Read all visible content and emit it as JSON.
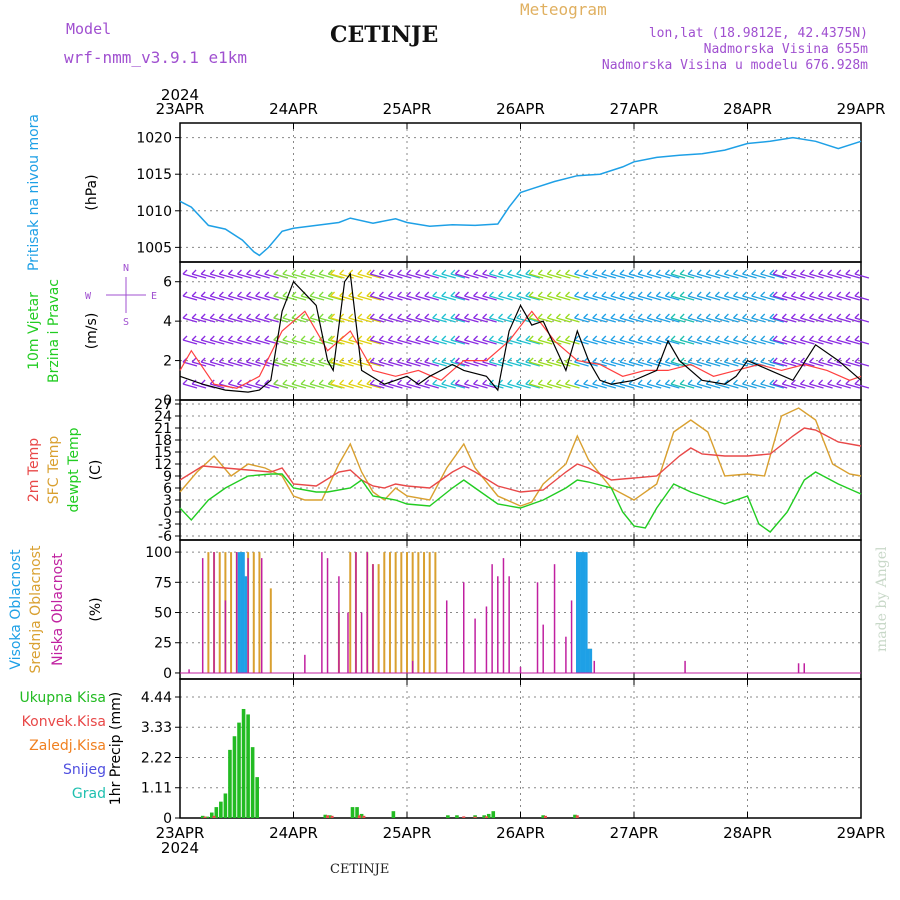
{
  "header": {
    "model_label": "Model",
    "model_name": "wrf-nmm_v3.9.1 e1km",
    "station": "CETINJE",
    "product": "Meteogram",
    "lonlat": "lon,lat (18.9812E, 42.4375N)",
    "altitude": "Nadmorska Visina 655m",
    "model_altitude": "Nadmorska Visina u modelu 676.928m",
    "footer_station": "CETINJE",
    "credit": "made by Angel"
  },
  "colors": {
    "pressure": "#1ea0e6",
    "temp2m": "#e84848",
    "sfc_temp": "#d9a030",
    "dewpt": "#22cc22",
    "high_cloud": "#1ea0e6",
    "mid_cloud": "#d9a030",
    "low_cloud": "#c020a0",
    "total_precip": "#22bb22",
    "conv_precip": "#e84848",
    "frozen_precip": "#f08020",
    "snow": "#5050e0",
    "grail": "#20c0b0",
    "wind_speed": "#000000",
    "wind_gust": "#ff4040"
  },
  "chart_data": {
    "type": "line",
    "x_axis": {
      "year": "2024",
      "ticks": [
        "23APR",
        "24APR",
        "25APR",
        "26APR",
        "27APR",
        "28APR",
        "29APR"
      ]
    },
    "panels": [
      {
        "name": "pressure",
        "ylabel": "Pritisak na nivou mora",
        "unit": "(hPa)",
        "ylim": [
          1003,
          1022
        ],
        "yticks": [
          1005,
          1010,
          1015,
          1020
        ],
        "series": [
          {
            "name": "pressure",
            "x": [
              0,
              0.1,
              0.25,
              0.4,
              0.55,
              0.65,
              0.7,
              0.78,
              0.9,
              1.0,
              1.2,
              1.4,
              1.5,
              1.7,
              1.9,
              2.0,
              2.2,
              2.4,
              2.6,
              2.8,
              2.9,
              3.0,
              3.1,
              3.3,
              3.5,
              3.7,
              3.9,
              4.0,
              4.2,
              4.4,
              4.6,
              4.8,
              5.0,
              5.2,
              5.4,
              5.6,
              5.8,
              6.0
            ],
            "values": [
              1011.3,
              1010.5,
              1008.0,
              1007.5,
              1006.0,
              1004.4,
              1003.9,
              1005.0,
              1007.2,
              1007.6,
              1008.0,
              1008.4,
              1009.0,
              1008.3,
              1008.9,
              1008.4,
              1007.9,
              1008.1,
              1008.0,
              1008.2,
              1010.5,
              1012.5,
              1013.0,
              1014.0,
              1014.8,
              1015.0,
              1016.0,
              1016.7,
              1017.3,
              1017.6,
              1017.8,
              1018.3,
              1019.2,
              1019.5,
              1020.0,
              1019.5,
              1018.5,
              1019.5
            ]
          }
        ]
      },
      {
        "name": "wind",
        "ylabel": "10m Vjetar",
        "ylabel2": "Brzina i Pravac",
        "unit": "(m/s)",
        "ylim": [
          0,
          7
        ],
        "yticks": [
          0,
          2,
          4,
          6
        ],
        "compass": {
          "n": "N",
          "s": "S",
          "e": "E",
          "w": "W"
        },
        "series": [
          {
            "name": "wind speed",
            "x": [
              0,
              0.2,
              0.4,
              0.6,
              0.7,
              0.8,
              0.9,
              1.0,
              1.2,
              1.3,
              1.35,
              1.45,
              1.5,
              1.6,
              1.8,
              1.9,
              2.0,
              2.1,
              2.2,
              2.4,
              2.5,
              2.7,
              2.8,
              2.9,
              3.0,
              3.1,
              3.2,
              3.4,
              3.5,
              3.6,
              3.7,
              3.8,
              4.0,
              4.2,
              4.3,
              4.4,
              4.6,
              4.8,
              4.9,
              5.0,
              5.2,
              5.4,
              5.6,
              5.8,
              6.0
            ],
            "values": [
              1.2,
              0.8,
              0.5,
              0.4,
              0.5,
              1.0,
              4.5,
              6.0,
              4.8,
              2.0,
              1.5,
              6.0,
              6.4,
              1.5,
              0.8,
              1.0,
              1.2,
              0.8,
              1.2,
              1.8,
              1.5,
              1.2,
              0.5,
              3.5,
              4.8,
              3.8,
              4.0,
              1.5,
              3.5,
              2.0,
              1.0,
              0.8,
              1.0,
              1.5,
              3.0,
              2.0,
              1.0,
              0.8,
              1.2,
              2.0,
              1.5,
              1.0,
              2.8,
              2.0,
              1.0
            ]
          },
          {
            "name": "wind gust",
            "x": [
              0,
              0.1,
              0.3,
              0.5,
              0.7,
              0.9,
              1.1,
              1.3,
              1.5,
              1.7,
              1.9,
              2.1,
              2.3,
              2.5,
              2.7,
              2.9,
              3.1,
              3.3,
              3.5,
              3.7,
              3.9,
              4.1,
              4.3,
              4.5,
              4.7,
              4.9,
              5.1,
              5.3,
              5.5,
              5.7,
              5.9,
              6.0
            ],
            "values": [
              1.5,
              2.5,
              0.8,
              0.6,
              1.2,
              3.5,
              4.5,
              2.5,
              3.5,
              1.5,
              1.2,
              1.5,
              1.0,
              2.0,
              2.0,
              3.0,
              4.5,
              3.0,
              2.0,
              1.8,
              1.2,
              1.5,
              1.5,
              1.8,
              1.2,
              1.5,
              1.8,
              1.5,
              1.8,
              1.5,
              1.0,
              1.2
            ]
          }
        ]
      },
      {
        "name": "temperature",
        "ylabel": "2m Temp",
        "ylabel2": "SFC Temp",
        "ylabel3": "dewpt Temp",
        "unit": "(C)",
        "ylim": [
          -7,
          28
        ],
        "yticks": [
          -6,
          -3,
          0,
          3,
          6,
          9,
          12,
          15,
          18,
          21,
          24,
          27
        ],
        "series": [
          {
            "name": "2m Temp",
            "x": [
              0,
              0.2,
              0.4,
              0.6,
              0.8,
              0.9,
              1.0,
              1.2,
              1.4,
              1.5,
              1.6,
              1.7,
              1.8,
              1.9,
              2.0,
              2.2,
              2.4,
              2.5,
              2.6,
              2.8,
              3.0,
              3.2,
              3.4,
              3.5,
              3.6,
              3.8,
              4.0,
              4.2,
              4.4,
              4.5,
              4.6,
              4.8,
              5.0,
              5.2,
              5.4,
              5.5,
              5.6,
              5.8,
              6.0
            ],
            "values": [
              8,
              11.5,
              11,
              10.5,
              10,
              11,
              7,
              6.5,
              10,
              10.5,
              8,
              6.5,
              6,
              7,
              6.5,
              6,
              10,
              11.5,
              10,
              6.5,
              5,
              5.5,
              10,
              12,
              11,
              8,
              8.5,
              9,
              14,
              16,
              14.5,
              14,
              14,
              14.5,
              19,
              21,
              20.5,
              17.5,
              16.5
            ]
          },
          {
            "name": "SFC Temp",
            "x": [
              0,
              0.15,
              0.3,
              0.45,
              0.6,
              0.75,
              0.9,
              1.0,
              1.1,
              1.25,
              1.4,
              1.5,
              1.6,
              1.7,
              1.8,
              1.9,
              2.0,
              2.2,
              2.35,
              2.5,
              2.6,
              2.8,
              3.0,
              3.1,
              3.2,
              3.4,
              3.5,
              3.6,
              3.8,
              3.9,
              4.0,
              4.2,
              4.35,
              4.5,
              4.65,
              4.8,
              5.0,
              5.15,
              5.3,
              5.45,
              5.6,
              5.75,
              5.9,
              6.0
            ],
            "values": [
              5,
              10,
              14,
              9,
              12,
              11,
              9,
              4,
              3,
              3,
              12,
              17,
              10,
              5,
              3,
              6,
              4,
              3,
              11,
              17,
              11,
              4,
              1.5,
              2.5,
              7,
              12,
              19,
              13,
              6,
              4.5,
              3,
              7,
              20,
              23,
              20,
              9,
              9.5,
              9,
              24,
              26,
              23,
              12,
              9.5,
              9
            ]
          },
          {
            "name": "dewpt Temp",
            "x": [
              0,
              0.1,
              0.25,
              0.4,
              0.6,
              0.8,
              0.9,
              1.0,
              1.2,
              1.3,
              1.5,
              1.6,
              1.7,
              1.9,
              2.0,
              2.2,
              2.4,
              2.5,
              2.6,
              2.8,
              3.0,
              3.2,
              3.4,
              3.5,
              3.6,
              3.8,
              3.9,
              4.0,
              4.1,
              4.2,
              4.35,
              4.5,
              4.6,
              4.8,
              5.0,
              5.1,
              5.2,
              5.35,
              5.5,
              5.6,
              5.8,
              6.0
            ],
            "values": [
              1,
              -2,
              3,
              6,
              9,
              9.5,
              9.5,
              6,
              5,
              5,
              6,
              8,
              4,
              3,
              2,
              1.5,
              6,
              8,
              6,
              2,
              1,
              3,
              6,
              8,
              7.5,
              6,
              0,
              -3.5,
              -4,
              1,
              7,
              5,
              4,
              2,
              4,
              -3,
              -5,
              0,
              8,
              10,
              7,
              4.5
            ]
          }
        ]
      },
      {
        "name": "clouds",
        "ylabel": "Visoka Oblacnost",
        "ylabel2": "Srednja Oblacnost",
        "ylabel3": "Niska Oblacnost",
        "unit": "(%)",
        "ylim": [
          -5,
          110
        ],
        "yticks": [
          0,
          25,
          50,
          75,
          100
        ],
        "series": [
          {
            "name": "Visoka Oblacnost",
            "x": [
              0.52,
              0.54,
              0.56,
              0.58,
              3.5,
              3.52,
              3.54,
              3.56,
              3.58,
              3.6,
              3.62
            ],
            "values": [
              100,
              100,
              100,
              80,
              100,
              100,
              100,
              100,
              100,
              20,
              20
            ]
          },
          {
            "name": "Srednja Oblacnost",
            "x": [
              0.25,
              0.3,
              0.35,
              0.4,
              0.45,
              0.5,
              0.55,
              0.6,
              0.65,
              0.7,
              0.8,
              1.4,
              1.5,
              1.55,
              1.65,
              1.7,
              1.75,
              1.8,
              1.85,
              1.9,
              1.95,
              2.0,
              2.05,
              2.1,
              2.15,
              2.2,
              2.25,
              3.55,
              3.6,
              3.62
            ],
            "values": [
              100,
              100,
              100,
              100,
              100,
              100,
              100,
              100,
              100,
              100,
              70,
              50,
              100,
              100,
              100,
              90,
              90,
              100,
              100,
              100,
              100,
              100,
              100,
              100,
              100,
              100,
              100,
              100,
              20,
              20
            ]
          },
          {
            "name": "Niska Oblacnost",
            "x": [
              0.08,
              0.2,
              0.3,
              0.4,
              0.5,
              0.6,
              0.72,
              1.1,
              1.25,
              1.3,
              1.4,
              1.48,
              1.55,
              1.6,
              1.65,
              1.7,
              2.05,
              2.35,
              2.5,
              2.6,
              2.7,
              2.75,
              2.8,
              2.85,
              2.9,
              3.0,
              3.15,
              3.2,
              3.3,
              3.4,
              3.45,
              3.65,
              4.45,
              5.45,
              5.5
            ],
            "values": [
              3,
              95,
              100,
              60,
              100,
              95,
              95,
              15,
              100,
              95,
              80,
              50,
              100,
              50,
              100,
              90,
              10,
              60,
              75,
              45,
              55,
              90,
              80,
              95,
              80,
              5,
              75,
              40,
              90,
              30,
              60,
              10,
              10,
              8,
              8
            ]
          }
        ]
      },
      {
        "name": "precipitation",
        "ylabel": "1hr Precip",
        "unit": "(mm)",
        "ylim": [
          0,
          5.1
        ],
        "yticks": [
          0,
          1.11,
          2.22,
          3.33,
          4.44
        ],
        "legend": [
          "Ukupna Kisa",
          "Konvek.Kisa",
          "Zaledj.Kisa",
          "Snijeg",
          "Grad"
        ],
        "series": [
          {
            "name": "Ukupna Kisa",
            "x": [
              0.2,
              0.24,
              0.28,
              0.32,
              0.36,
              0.4,
              0.44,
              0.48,
              0.52,
              0.56,
              0.6,
              0.64,
              0.68,
              1.28,
              1.32,
              1.52,
              1.56,
              1.6,
              1.88,
              2.36,
              2.44,
              2.6,
              2.68,
              2.72,
              2.76,
              3.2,
              3.48
            ],
            "values": [
              0.08,
              0.05,
              0.2,
              0.4,
              0.6,
              0.9,
              2.5,
              3.0,
              3.5,
              4.0,
              3.8,
              2.6,
              1.5,
              0.12,
              0.1,
              0.4,
              0.4,
              0.15,
              0.25,
              0.1,
              0.1,
              0.1,
              0.1,
              0.15,
              0.25,
              0.1,
              0.12
            ]
          },
          {
            "name": "Konvek.Kisa",
            "x": [
              0.22,
              0.3,
              1.3,
              1.34,
              1.58,
              1.62,
              2.5,
              2.6,
              2.7,
              3.22,
              3.5
            ],
            "values": [
              0.05,
              0.08,
              0.1,
              0.08,
              0.1,
              0.08,
              0.06,
              0.05,
              0.06,
              0.08,
              0.1
            ]
          }
        ]
      }
    ]
  }
}
